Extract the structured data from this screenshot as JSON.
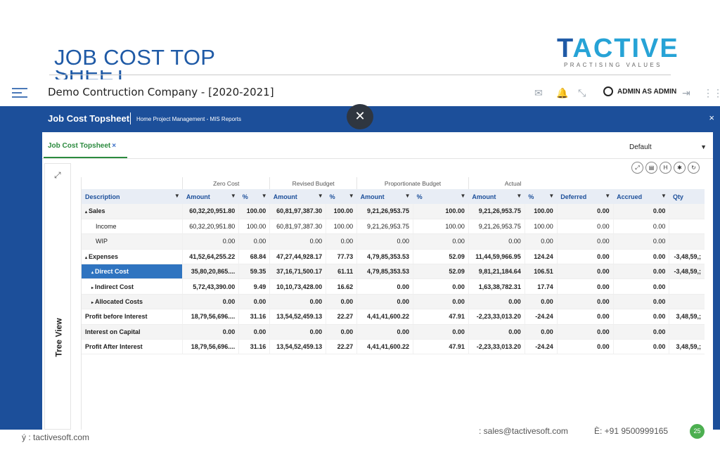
{
  "slide": {
    "title": "JOB COST TOP",
    "title_overflow": "SHEET",
    "logo_word_a": "T",
    "logo_word_b": "ACTIVE",
    "logo_tagline": "PRACTISING VALUES"
  },
  "app": {
    "company": "Demo Contruction Company - [2020-2021]",
    "user": "ADMIN AS ADMIN"
  },
  "header": {
    "title": "Job Cost Topsheet",
    "breadcrumb": "Home Project Management - MIS Reports",
    "close_symbol": "×"
  },
  "overlay": {
    "close_symbol": "✕"
  },
  "tabs": [
    {
      "label": "Job Cost Topsheet",
      "close": "×"
    }
  ],
  "layout_select": {
    "value": "Default"
  },
  "side_panel": {
    "label": "Tree View"
  },
  "toolbar_icons": [
    "expand-icon",
    "pdf-icon",
    "h-icon",
    "settings-icon",
    "refresh-icon"
  ],
  "toolbar_glyphs": [
    "⤢",
    "▤",
    "H",
    "✱",
    "↻"
  ],
  "grid": {
    "groups": [
      "Zero Cost",
      "Revised Budget",
      "Proportionate Budget",
      "Actual"
    ],
    "columns": [
      "Description",
      "Amount",
      "%",
      "Amount",
      "%",
      "Amount",
      "%",
      "Amount",
      "%",
      "Deferred",
      "Accrued",
      "Qty"
    ],
    "rows": [
      {
        "desc": "Sales",
        "prefix": "▴",
        "vals": [
          "60,32,20,951.80",
          "100.00",
          "60,81,97,387.30",
          "100.00",
          "9,21,26,953.75",
          "100.00",
          "9,21,26,953.75",
          "100.00",
          "0.00",
          "0.00",
          ""
        ]
      },
      {
        "desc": "Income",
        "prefix": "",
        "vals": [
          "60,32,20,951.80",
          "100.00",
          "60,81,97,387.30",
          "100.00",
          "9,21,26,953.75",
          "100.00",
          "9,21,26,953.75",
          "100.00",
          "0.00",
          "0.00",
          ""
        ]
      },
      {
        "desc": "WIP",
        "prefix": "",
        "vals": [
          "0.00",
          "0.00",
          "0.00",
          "0.00",
          "0.00",
          "0.00",
          "0.00",
          "0.00",
          "0.00",
          "0.00",
          ""
        ]
      },
      {
        "desc": "Expenses",
        "prefix": "▴",
        "vals": [
          "41,52,64,255.22",
          "68.84",
          "47,27,44,928.17",
          "77.73",
          "4,79,85,353.53",
          "52.09",
          "11,44,59,966.95",
          "124.24",
          "0.00",
          "0.00",
          "-3,48,59,;"
        ]
      },
      {
        "desc": "Direct Cost",
        "prefix": "▴",
        "vals": [
          "35,80,20,865....",
          "59.35",
          "37,16,71,500.17",
          "61.11",
          "4,79,85,353.53",
          "52.09",
          "9,81,21,184.64",
          "106.51",
          "0.00",
          "0.00",
          "-3,48,59,;"
        ]
      },
      {
        "desc": "Indirect Cost",
        "prefix": "▸",
        "vals": [
          "5,72,43,390.00",
          "9.49",
          "10,10,73,428.00",
          "16.62",
          "0.00",
          "0.00",
          "1,63,38,782.31",
          "17.74",
          "0.00",
          "0.00",
          ""
        ]
      },
      {
        "desc": "Allocated Costs",
        "prefix": "▸",
        "vals": [
          "0.00",
          "0.00",
          "0.00",
          "0.00",
          "0.00",
          "0.00",
          "0.00",
          "0.00",
          "0.00",
          "0.00",
          ""
        ]
      },
      {
        "desc": "Profit before Interest",
        "prefix": "",
        "vals": [
          "18,79,56,696....",
          "31.16",
          "13,54,52,459.13",
          "22.27",
          "4,41,41,600.22",
          "47.91",
          "-2,23,33,013.20",
          "-24.24",
          "0.00",
          "0.00",
          "3,48,59,;"
        ]
      },
      {
        "desc": "Interest on Capital",
        "prefix": "",
        "vals": [
          "0.00",
          "0.00",
          "0.00",
          "0.00",
          "0.00",
          "0.00",
          "0.00",
          "0.00",
          "0.00",
          "0.00",
          ""
        ]
      },
      {
        "desc": "Profit After Interest",
        "prefix": "",
        "vals": [
          "18,79,56,696....",
          "31.16",
          "13,54,52,459.13",
          "22.27",
          "4,41,41,600.22",
          "47.91",
          "-2,23,33,013.20",
          "-24.24",
          "0.00",
          "0.00",
          "3,48,59,;"
        ]
      }
    ]
  },
  "footer": {
    "web": "ý : tactivesoft.com",
    "mail": ": sales@tactivesoft.com",
    "phone": "È: +91 9500999165",
    "page": "25"
  },
  "colors": {
    "primary": "#1c4f9a",
    "accent_green": "#2b8a3e",
    "selected_row": "#2f74c0",
    "badge": "#4caf50"
  }
}
